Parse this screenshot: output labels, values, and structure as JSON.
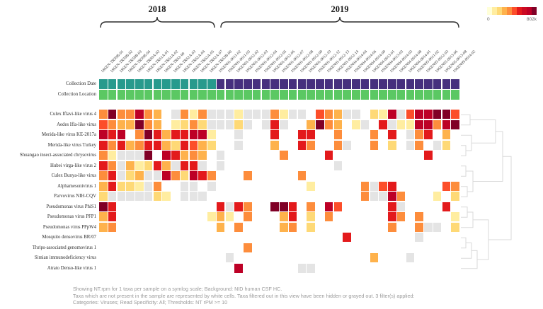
{
  "header": {
    "groups": [
      {
        "label": "2018",
        "col_start": 0,
        "col_end": 12
      },
      {
        "label": "2019",
        "col_start": 13,
        "col_end": 39
      }
    ]
  },
  "legend": {
    "min_label": "0",
    "max_label": "802k",
    "colors": [
      "#ffffd9",
      "#ffeda0",
      "#fed976",
      "#feb24c",
      "#fd8d3c",
      "#fc4e2a",
      "#e31a1c",
      "#cc0a22",
      "#bd0026",
      "#800026"
    ]
  },
  "annotation_rows": [
    {
      "key": "date",
      "label": "Collection Date"
    },
    {
      "key": "location",
      "label": "Collection Location"
    }
  ],
  "annotation_colors": {
    "date_2018": "#279a8d",
    "date_2019": "#46307e",
    "location": "#5bc863"
  },
  "chart_data": {
    "type": "heatmap",
    "metric": "NT.rpm",
    "value_scale": "symlog",
    "value_range": [
      "0",
      "802k"
    ],
    "columns": [
      "18SEN-TR59B-01",
      "18SEN-TR59B-02",
      "18SEN-TR59B-03",
      "18SEN-TR59B-04",
      "18SEN-TR60A-02",
      "18SEN-TR61A-01",
      "18SEN-TR61A-02",
      "18SEN-TR62-00",
      "18SEN-TR62A-03",
      "18SEN-TR62A-04",
      "18SEN-TR62A-05",
      "18SEN-TR62A-07",
      "18SEN-TR63B-00",
      "19SEN01-0611-02",
      "19SEN01-0611-03",
      "19SEN01-0612-02",
      "19SEN01-0612-03",
      "19SEN01-0612-04",
      "19SEN01-0612-05",
      "19SEN01-0612-06",
      "19SEN01-0612-07",
      "19SEN01-0612-08",
      "19SEN01-0612-09",
      "19SEN01-0612-10",
      "19SEN01-0612-12",
      "19SEN01-0612-13",
      "19SEN01-0612-14",
      "19SEN04-0614-04",
      "19SEN04-0614-06",
      "19SEN04-0614-09",
      "19SEN04-0613-01",
      "19SEN04-0613-03",
      "19SEN04-0614-03",
      "19SEN04-0614-08",
      "19SEN04-0614-01",
      "19SEN05-0611-02",
      "19SEN05-0612-03",
      "19SEN05-0613-06",
      "19SEN05-0613-08",
      "19SEN09-0614-02"
    ],
    "column_groups": [
      "2018",
      "2018",
      "2018",
      "2018",
      "2018",
      "2018",
      "2018",
      "2018",
      "2018",
      "2018",
      "2018",
      "2018",
      "2018",
      "2019",
      "2019",
      "2019",
      "2019",
      "2019",
      "2019",
      "2019",
      "2019",
      "2019",
      "2019",
      "2019",
      "2019",
      "2019",
      "2019",
      "2019",
      "2019",
      "2019",
      "2019",
      "2019",
      "2019",
      "2019",
      "2019",
      "2019",
      "2019",
      "2019",
      "2019",
      "2019"
    ],
    "rows": [
      "Culex Iflavi-like virus 4",
      "Aedes Ifla-like virus",
      "Merida-like virus KE-2017a",
      "Merida-like virus Turkey",
      "Shuangao insect-associated chrysovirus",
      "Hubei virga-like virus 2",
      "Culex Bunya-like virus",
      "Alphamesonivirus 1",
      "Parvovirus NIH-CQV",
      "Pseudomonas virus PhiS1",
      "Pseudomonas virus PFP1",
      "Pseudomonas virus PPpW4",
      "Mosquito densovirus BR/07",
      "Thrips-associated genomovirus 1",
      "Simian immunodeficiency virus",
      "Atrato Denso-like virus 1"
    ],
    "cells": [
      "DMDDBDOWGDYDGGGYGGGDYGGWRDOGGWLYBGRBBMMR",
      "RDOOMDOWYLDLGGGLGWGEGWWOMDOWYGWEGYYBBDBM",
      "BEBWDMEOEEBBYWWGWWWEWWEEWWDWWWDWEWGDEWOW",
      "EDEODEEOLEROLWWGWWWOWWEDWWDGWWDWLWGDWGLW",
      "DYGGGMWBEODOWGWWWWWWDWWWWEWWWWWWWWWWEWWW",
      "EDGOYLEOGEEGWGWWWWWWWWWWWWGWWWWWWWWWWWWW",
      "DEGLOGGBDLBEDWWWDWWWWWDWWWWWWWWWWWWWWWWW",
      "OELLYGDWWGGWGWWWWWWWWWWYWWWWWDGREWWWWWRD",
      "LGGGGGLYWGGGWWWWWWWWWWWWWWWWWDGGBDWWWYWL",
      "MEWWWWWWWWWWWEGEDWWMMEWDWBRWWWWWEGWWWWEW",
      "OEWWWWWWWWWWYOYWDWWWOEWLWDWWWWWWEDWDWWWY",
      "ODWWWWWWWWWWWOWDWWWWODWLWWWWWWWWDWWDGGWL",
      "WWWWWWWWWWWWWWWWWWWWWWWWWWWEWWWWWWWGWWWW",
      "WWWWWWWWWWWWWWWWDWWWWWWWWWWWWWWWWWWWWWWW",
      "WWWWWWWWWWWWWWGWWWWWWWWWWWWWWWOWWWGWWWWW",
      "WWWWWWWWWWWWWWWBWWWWWWGGWWWWWWWWWWWWWWWW"
    ],
    "palette": {
      "W": "#ffffff",
      "G": "#e4e4e4",
      "Y": "#ffeda0",
      "L": "#fed976",
      "O": "#feb24c",
      "D": "#fd8d3c",
      "R": "#fc4e2a",
      "E": "#e31a1c",
      "B": "#bd0026",
      "M": "#800026"
    },
    "cell_legend": {
      "W": "not present in sample (white)",
      "G": "filtered out in this view (gray)"
    }
  },
  "footer": {
    "lines": [
      "Showing NT.rpm for 1 taxa per sample on a symlog scale; Background: NID human CSF HC.",
      "Taxa which are not present in the sample are represented by white cells. Taxa filtered out in this view have been hidden or grayed out. 3 filter(s) applied:",
      "Categories: Viruses; Read Specificity: All; Thresholds: NT rPM >= 10"
    ]
  }
}
